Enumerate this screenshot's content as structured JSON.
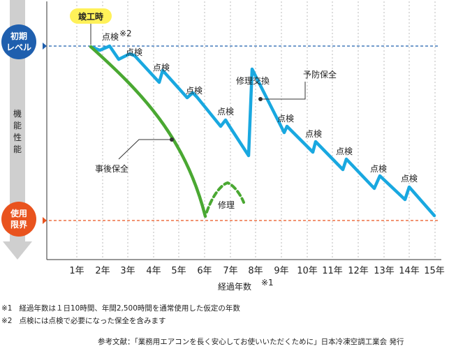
{
  "completion_label": "竣工時",
  "initial_level": [
    "初期",
    "レベル"
  ],
  "usage_limit": [
    "使用",
    "限界"
  ],
  "y_axis_label": [
    "機",
    "能",
    "性",
    "能"
  ],
  "x_axis_label": "経過年数",
  "x_axis_sup": "※1",
  "x_ticks": [
    "1年",
    "2年",
    "3年",
    "4年",
    "5年",
    "6年",
    "7年",
    "8年",
    "9年",
    "10年",
    "11年",
    "12年",
    "13年",
    "14年",
    "15年"
  ],
  "inspection_label": "点検",
  "inspection_first_sup": "※2",
  "preventive_label": "予防保全",
  "after_label": "事後保全",
  "repair_label": "修理",
  "replace_label": "修理交換",
  "colors": {
    "preventive": "#19a8e0",
    "after": "#4aa832",
    "initial_circle": "#1f5fae",
    "limit_circle": "#e9531e",
    "badge": "#fff159",
    "axis_bar": "#cfcfcf"
  },
  "notes": {
    "note1_mark": "※1",
    "note1_text": "経過年数は１日10時間、年間2,500時間を通常使用した仮定の年数",
    "note2_mark": "※2",
    "note2_text": "点検には点検で必要になった保全を含みます",
    "reference": "参考文献：「業務用エアコンを長く安心してお使いいただくために」日本冷凍空調工業会 発行"
  }
}
